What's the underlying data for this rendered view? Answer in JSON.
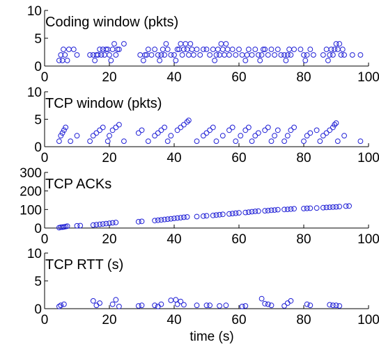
{
  "colors": {
    "marker": "#1f1fd6",
    "axis": "#000000",
    "background": "#ffffff"
  },
  "x_axis_label": "time (s)",
  "chart_data": [
    {
      "type": "scatter",
      "title": "Coding window (pkts)",
      "xlim": [
        0,
        100
      ],
      "ylim": [
        0,
        10
      ],
      "xticks": [
        0,
        20,
        40,
        60,
        80,
        100
      ],
      "yticks": [
        0,
        5,
        10
      ],
      "xlabel": "",
      "ylabel": "",
      "grid": false,
      "x": [
        4.5,
        5.0,
        5.5,
        5.8,
        6.3,
        7.0,
        7.5,
        9.0,
        10.0,
        14.0,
        15.0,
        15.5,
        16.0,
        16.5,
        17.0,
        17.5,
        18.0,
        18.5,
        19.0,
        19.5,
        20.0,
        20.5,
        21.0,
        21.5,
        22.0,
        22.5,
        23.0,
        24.5,
        29.5,
        30.5,
        31.0,
        31.5,
        32.0,
        33.0,
        34.0,
        35.0,
        35.5,
        36.0,
        36.5,
        37.0,
        37.5,
        38.0,
        39.0,
        40.0,
        40.5,
        41.0,
        41.5,
        42.0,
        42.5,
        43.0,
        43.5,
        44.0,
        44.5,
        45.0,
        45.5,
        46.0,
        47.0,
        48.0,
        49.0,
        50.0,
        51.0,
        52.0,
        52.5,
        53.0,
        53.5,
        54.0,
        54.5,
        55.0,
        55.5,
        56.0,
        56.5,
        57.0,
        58.0,
        59.0,
        60.0,
        61.0,
        62.0,
        62.5,
        63.0,
        64.0,
        65.0,
        66.0,
        66.5,
        67.0,
        67.5,
        68.0,
        69.0,
        70.0,
        71.0,
        72.0,
        73.0,
        74.0,
        74.5,
        75.0,
        75.5,
        76.0,
        77.0,
        79.0,
        80.0,
        80.5,
        81.0,
        82.0,
        83.0,
        86.0,
        87.0,
        87.5,
        88.0,
        88.5,
        89.0,
        89.5,
        90.0,
        90.5,
        91.0,
        91.5,
        92.0,
        92.5,
        95.0,
        97.5
      ],
      "y": [
        1.0,
        2.0,
        1.0,
        3.0,
        2.0,
        1.0,
        3.0,
        3.0,
        2.0,
        2.0,
        2.0,
        1.0,
        2.0,
        2.0,
        3.0,
        2.0,
        3.0,
        2.0,
        3.0,
        3.0,
        2.0,
        1.0,
        3.0,
        4.0,
        2.0,
        3.0,
        3.0,
        4.0,
        2.0,
        1.0,
        2.0,
        2.0,
        3.0,
        2.0,
        3.0,
        2.0,
        1.0,
        2.0,
        3.0,
        2.0,
        4.0,
        3.0,
        2.0,
        2.0,
        1.0,
        3.0,
        3.0,
        4.0,
        2.0,
        3.0,
        4.0,
        3.0,
        2.0,
        4.0,
        3.0,
        2.0,
        3.0,
        2.0,
        3.0,
        3.0,
        2.0,
        3.0,
        1.0,
        2.0,
        3.0,
        2.0,
        4.0,
        3.0,
        2.0,
        4.0,
        3.0,
        2.0,
        3.0,
        2.0,
        3.0,
        2.0,
        1.0,
        2.0,
        3.0,
        2.0,
        3.0,
        2.0,
        1.0,
        2.0,
        3.0,
        3.0,
        2.0,
        3.0,
        2.0,
        3.0,
        2.0,
        2.0,
        1.0,
        2.0,
        3.0,
        2.0,
        3.0,
        3.0,
        2.0,
        1.0,
        2.0,
        3.0,
        2.0,
        2.0,
        3.0,
        1.0,
        2.0,
        3.0,
        2.0,
        3.0,
        4.0,
        3.0,
        4.0,
        2.0,
        3.0,
        2.0,
        2.0,
        2.0
      ]
    },
    {
      "type": "scatter",
      "title": "TCP window (pkts)",
      "xlim": [
        0,
        100
      ],
      "ylim": [
        0,
        10
      ],
      "xticks": [
        0,
        20,
        40,
        60,
        80,
        100
      ],
      "yticks": [
        0,
        5,
        10
      ],
      "xlabel": "",
      "ylabel": "",
      "grid": false,
      "x": [
        4.5,
        5.0,
        5.5,
        6.0,
        6.5,
        8.0,
        10.0,
        14.0,
        15.0,
        16.0,
        17.0,
        18.0,
        19.5,
        20.0,
        21.0,
        22.0,
        23.0,
        24.5,
        29.0,
        30.0,
        32.0,
        34.0,
        35.0,
        36.0,
        37.0,
        38.0,
        39.0,
        41.0,
        42.0,
        43.0,
        44.0,
        44.5,
        47.0,
        49.0,
        50.0,
        51.0,
        52.0,
        53.0,
        55.0,
        57.0,
        58.0,
        59.0,
        60.5,
        62.0,
        63.0,
        64.0,
        65.0,
        66.0,
        68.0,
        69.0,
        70.0,
        71.0,
        72.0,
        74.0,
        75.0,
        76.0,
        77.0,
        80.0,
        81.0,
        82.0,
        84.0,
        85.0,
        86.0,
        87.0,
        88.0,
        89.0,
        89.5,
        90.0,
        90.5,
        92.5,
        97.5
      ],
      "y": [
        1.0,
        2.0,
        2.5,
        3.0,
        3.5,
        1.0,
        2.0,
        1.0,
        2.0,
        2.5,
        3.0,
        3.5,
        1.0,
        2.0,
        3.0,
        3.5,
        4.0,
        1.0,
        2.5,
        3.0,
        1.0,
        2.0,
        2.5,
        3.0,
        3.5,
        1.0,
        2.0,
        3.0,
        3.5,
        4.0,
        4.5,
        4.8,
        1.0,
        2.0,
        2.5,
        3.0,
        3.5,
        1.0,
        2.0,
        3.0,
        3.5,
        1.0,
        2.0,
        3.0,
        3.5,
        1.0,
        2.0,
        2.5,
        3.0,
        3.5,
        1.0,
        2.0,
        3.0,
        1.0,
        2.0,
        3.0,
        3.5,
        1.0,
        2.0,
        2.5,
        3.0,
        1.0,
        2.0,
        2.5,
        3.0,
        3.5,
        4.0,
        4.3,
        1.0,
        2.0,
        1.0
      ]
    },
    {
      "type": "scatter",
      "title": "TCP ACKs",
      "xlim": [
        0,
        100
      ],
      "ylim": [
        0,
        300
      ],
      "xticks": [
        0,
        20,
        40,
        60,
        80,
        100
      ],
      "yticks": [
        0,
        100,
        200,
        300
      ],
      "xlabel": "",
      "ylabel": "",
      "grid": false,
      "x": [
        4.5,
        5.0,
        5.5,
        6.0,
        6.5,
        7.0,
        10.0,
        11.0,
        15.0,
        16.0,
        17.0,
        18.0,
        19.0,
        20.0,
        21.0,
        22.0,
        29.0,
        30.0,
        34.0,
        35.0,
        36.0,
        37.0,
        38.0,
        39.0,
        40.0,
        41.0,
        42.0,
        43.0,
        44.0,
        47.0,
        49.0,
        50.0,
        52.0,
        53.0,
        54.0,
        55.0,
        57.0,
        58.0,
        59.0,
        60.0,
        62.0,
        63.0,
        64.0,
        65.0,
        66.0,
        68.0,
        69.0,
        70.0,
        71.0,
        72.0,
        74.0,
        75.0,
        76.0,
        77.0,
        80.0,
        81.0,
        82.0,
        84.0,
        86.0,
        87.0,
        88.0,
        89.0,
        90.0,
        91.0,
        93.0,
        94.0
      ],
      "y": [
        2,
        4,
        5,
        6,
        8,
        10,
        12,
        13,
        16,
        18,
        20,
        22,
        24,
        26,
        28,
        30,
        34,
        36,
        40,
        42,
        44,
        46,
        48,
        50,
        52,
        54,
        56,
        58,
        60,
        62,
        64,
        66,
        68,
        70,
        72,
        74,
        76,
        78,
        80,
        82,
        84,
        86,
        88,
        90,
        91,
        93,
        94,
        96,
        97,
        99,
        100,
        101,
        102,
        104,
        105,
        106,
        107,
        108,
        110,
        111,
        112,
        113,
        114,
        116,
        118,
        119
      ]
    },
    {
      "type": "scatter",
      "title": "TCP RTT (s)",
      "xlim": [
        0,
        100
      ],
      "ylim": [
        0,
        10
      ],
      "xticks": [
        0,
        20,
        40,
        60,
        80,
        100
      ],
      "yticks": [
        0,
        5,
        10
      ],
      "xlabel": "time (s)",
      "ylabel": "",
      "grid": false,
      "x": [
        4.5,
        5.0,
        6.0,
        15.0,
        16.0,
        17.0,
        21.0,
        22.0,
        23.0,
        29.0,
        30.0,
        34.0,
        35.0,
        36.0,
        39.0,
        40.5,
        41.0,
        42.0,
        43.0,
        47.0,
        50.0,
        51.0,
        54.0,
        56.0,
        61.0,
        62.0,
        67.0,
        68.0,
        69.0,
        70.0,
        74.0,
        75.0,
        76.0,
        81.0,
        82.0,
        88.0,
        89.0,
        90.0,
        91.0
      ],
      "y": [
        0.4,
        0.6,
        0.8,
        1.4,
        0.6,
        1.0,
        0.8,
        1.6,
        0.4,
        0.5,
        0.6,
        0.6,
        0.4,
        0.8,
        1.5,
        1.6,
        0.8,
        1.3,
        0.7,
        0.6,
        0.6,
        0.6,
        0.5,
        0.6,
        0.4,
        0.5,
        1.8,
        0.9,
        0.8,
        0.6,
        0.5,
        1.0,
        1.4,
        0.8,
        0.6,
        0.7,
        0.6,
        0.6,
        0.5
      ]
    }
  ]
}
